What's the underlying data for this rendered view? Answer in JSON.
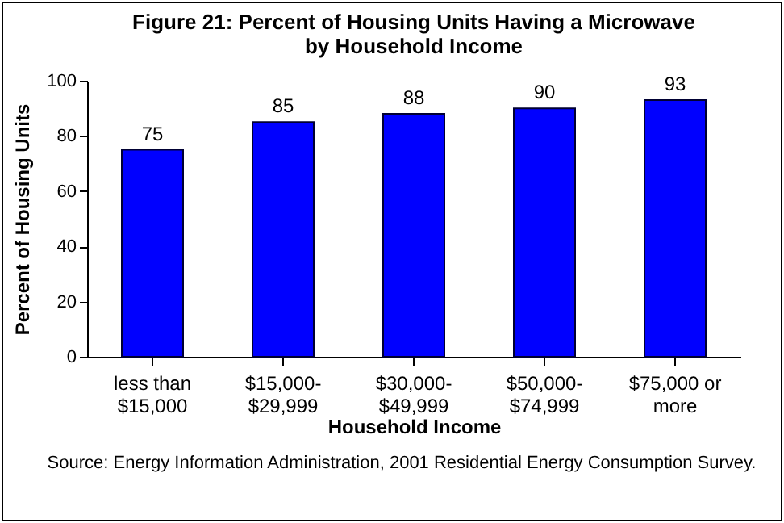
{
  "chart_data": {
    "type": "bar",
    "title": [
      "Figure 21:  Percent of Housing Units Having a Microwave",
      "by Household Income"
    ],
    "xlabel": "Household Income",
    "ylabel": "Percent of Housing Units",
    "categories": [
      "less than $15,000",
      "$15,000-$29,999",
      "$30,000-$49,999",
      "$50,000-$74,999",
      "$75,000 or more"
    ],
    "values": [
      75,
      85,
      88,
      90,
      93
    ],
    "color": "#0000ff",
    "ylim": [
      0,
      100
    ],
    "yticks": [
      0,
      20,
      40,
      60,
      80,
      100
    ],
    "grid": false,
    "data_labels": true,
    "annotations": [
      "Source:  Energy Information Administration, 2001 Residential Energy Consumption Survey."
    ]
  }
}
